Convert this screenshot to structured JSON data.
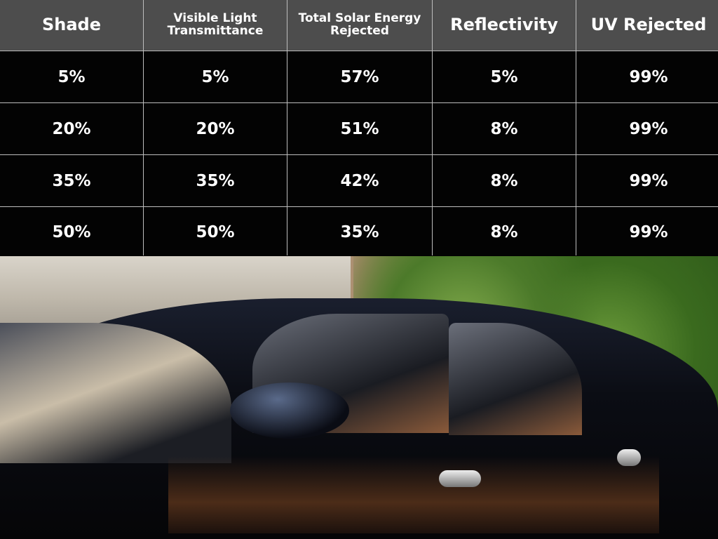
{
  "table": {
    "headers": [
      "Shade",
      "Visible Light Transmittance",
      "Total Solar Energy Rejected",
      "Reflectivity",
      "UV Rejected"
    ],
    "rows": [
      [
        "5%",
        "5%",
        "57%",
        "5%",
        "99%"
      ],
      [
        "20%",
        "20%",
        "51%",
        "8%",
        "99%"
      ],
      [
        "35%",
        "35%",
        "42%",
        "8%",
        "99%"
      ],
      [
        "50%",
        "50%",
        "35%",
        "8%",
        "99%"
      ]
    ]
  },
  "colors": {
    "header_bg": "#4d4d4d",
    "row_bg": "#030303",
    "grid": "#bdbdbd",
    "text": "#ffffff"
  }
}
